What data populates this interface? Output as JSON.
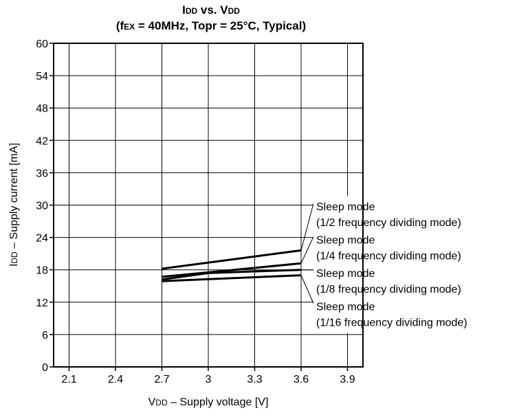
{
  "chart_data": {
    "type": "line",
    "title": {
      "line1": {
        "main1": "I",
        "sub1": "DD",
        "main2": " vs. V",
        "sub2": "DD"
      },
      "line2": {
        "pre": "(f",
        "sub": "EX",
        "post": " = 40MHz, Topr = 25°C, Typical)"
      }
    },
    "xlabel": {
      "main": "V",
      "sub": "DD",
      "rest": " – Supply voltage [V]"
    },
    "ylabel": {
      "main": "I",
      "sub": "DD",
      "rest": " – Supply current [mA]"
    },
    "xlim": [
      2.0,
      4.0
    ],
    "ylim": [
      0,
      60
    ],
    "x_ticks": [
      2.1,
      2.4,
      2.7,
      3.0,
      3.3,
      3.6,
      3.9
    ],
    "x_tick_labels": [
      "2.1",
      "2.4",
      "2.7",
      "3",
      "3.3",
      "3.6",
      "3.9"
    ],
    "y_ticks": [
      0,
      6,
      12,
      18,
      24,
      30,
      36,
      42,
      48,
      54,
      60
    ],
    "y_tick_labels": [
      "0",
      "6",
      "12",
      "18",
      "24",
      "30",
      "36",
      "42",
      "48",
      "54",
      "60"
    ],
    "grid": true,
    "series": [
      {
        "name": "1/2",
        "x": [
          2.7,
          3.6
        ],
        "y": [
          18.2,
          21.6
        ]
      },
      {
        "name": "1/4",
        "x": [
          2.7,
          3.6
        ],
        "y": [
          16.7,
          19.2
        ]
      },
      {
        "name": "1/8",
        "x": [
          2.7,
          3.0,
          3.6
        ],
        "y": [
          16.2,
          17.4,
          18.0
        ]
      },
      {
        "name": "1/16",
        "x": [
          2.7,
          3.6
        ],
        "y": [
          15.9,
          17.0
        ]
      }
    ],
    "annotations": [
      {
        "line1": "Sleep mode",
        "line2": "(1/2 frequency dividing mode)"
      },
      {
        "line1": "Sleep mode",
        "line2": "(1/4 frequency dividing mode)"
      },
      {
        "line1": "Sleep mode",
        "line2": "(1/8 frequency dividing mode)"
      },
      {
        "line1": "Sleep mode",
        "line2": "(1/16 frequency dividing mode)"
      }
    ]
  }
}
